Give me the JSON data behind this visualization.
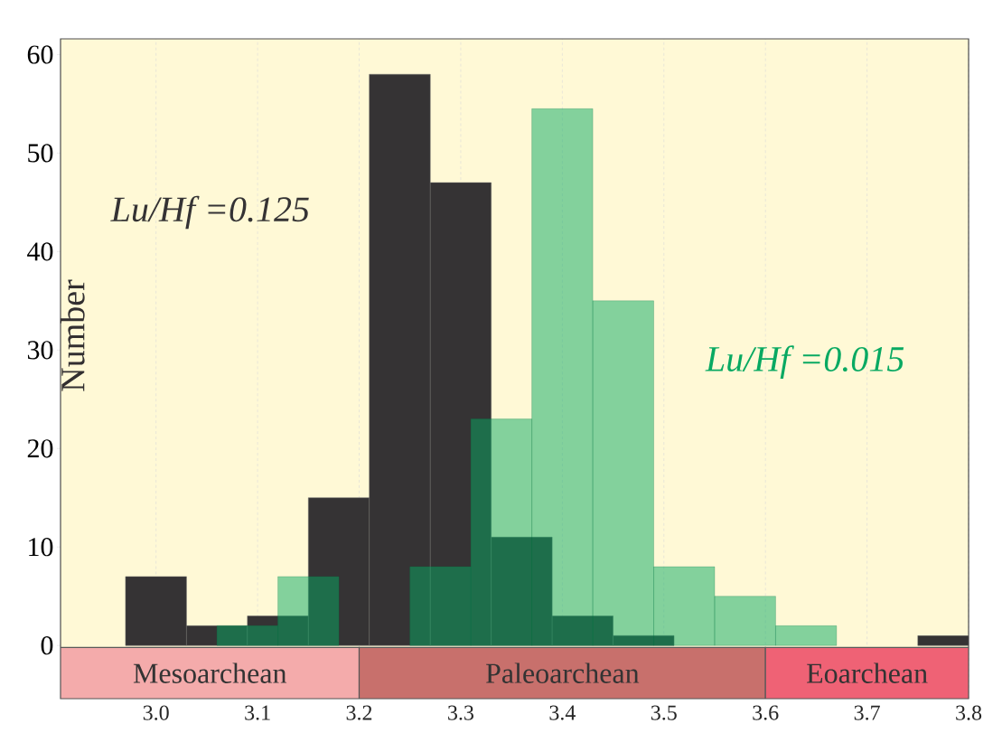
{
  "chart_data": {
    "type": "histogram",
    "ylabel": "Number",
    "xlim": [
      2.906,
      3.8
    ],
    "ylim": [
      -5.4,
      61.6
    ],
    "xticks": [
      {
        "value": 3.0,
        "label": "3.0"
      },
      {
        "value": 3.1,
        "label": "3.1"
      },
      {
        "value": 3.2,
        "label": "3.2"
      },
      {
        "value": 3.3,
        "label": "3.3"
      },
      {
        "value": 3.4,
        "label": "3.4"
      },
      {
        "value": 3.5,
        "label": "3.5"
      },
      {
        "value": 3.6,
        "label": "3.6"
      },
      {
        "value": 3.7,
        "label": "3.7"
      },
      {
        "value": 3.8,
        "label": "3.8"
      }
    ],
    "yticks": [
      {
        "value": 0,
        "label": "0"
      },
      {
        "value": 10,
        "label": "10"
      },
      {
        "value": 20,
        "label": "20"
      },
      {
        "value": 30,
        "label": "30"
      },
      {
        "value": 40,
        "label": "40"
      },
      {
        "value": 50,
        "label": "50"
      },
      {
        "value": 60,
        "label": "60"
      }
    ],
    "grid": "x",
    "bins": [
      2.97,
      3.03,
      3.09,
      3.15,
      3.21,
      3.27,
      3.33,
      3.39,
      3.45,
      3.51,
      3.75,
      3.8
    ],
    "series": [
      {
        "name": "Lu/Hf =0.125",
        "color": "#353334",
        "values": [
          7,
          2,
          3,
          15,
          58,
          47,
          11,
          3,
          1,
          0,
          1
        ]
      },
      {
        "name": "Lu/Hf =0.015",
        "color": "#08a962",
        "bins": [
          3.06,
          3.12,
          3.18,
          3.25,
          3.31,
          3.37,
          3.43,
          3.49,
          3.55,
          3.61,
          3.67
        ],
        "values": [
          2,
          7,
          0,
          8,
          23,
          54.5,
          35,
          8,
          5,
          2
        ]
      }
    ],
    "bands": [
      {
        "axis": "x",
        "from": 2.906,
        "to": 3.2,
        "label": "Mesoarchean",
        "color": "#f4abab"
      },
      {
        "axis": "x",
        "from": 3.2,
        "to": 3.6,
        "label": "Paleoarchean",
        "color": "#c8706c"
      },
      {
        "axis": "x",
        "from": 3.6,
        "to": 3.8,
        "label": "Eoarchean",
        "color": "#ef6275"
      }
    ]
  }
}
